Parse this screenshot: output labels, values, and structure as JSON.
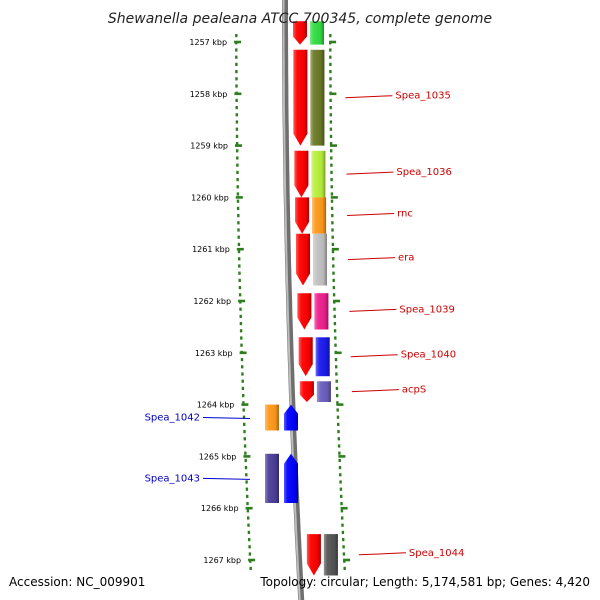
{
  "header": {
    "title": "Shewanella pealeana ATCC 700345, complete genome"
  },
  "footer": {
    "accession": "Accession: NC_009901",
    "topology": "Topology: circular; Length: 5,174,581 bp; Genes: 4,420"
  },
  "scale": {
    "unit": "kbp",
    "ticks": [
      {
        "value": 1257,
        "label": "1257 kbp"
      },
      {
        "value": 1258,
        "label": "1258 kbp"
      },
      {
        "value": 1259,
        "label": "1259 kbp"
      },
      {
        "value": 1260,
        "label": "1260 kbp"
      },
      {
        "value": 1261,
        "label": "1261 kbp"
      },
      {
        "value": 1262,
        "label": "1262 kbp"
      },
      {
        "value": 1263,
        "label": "1263 kbp"
      },
      {
        "value": 1264,
        "label": "1264 kbp"
      },
      {
        "value": 1265,
        "label": "1265 kbp"
      },
      {
        "value": 1266,
        "label": "1266 kbp"
      },
      {
        "value": 1267,
        "label": "1267 kbp"
      }
    ]
  },
  "genes": [
    {
      "label": "",
      "strand": "+",
      "start": 1256.6,
      "end": 1257.05,
      "color": "#33dd44"
    },
    {
      "label": "Spea_1035",
      "strand": "+",
      "start": 1257.15,
      "end": 1259.0,
      "color": "#6b7a26"
    },
    {
      "label": "Spea_1036",
      "strand": "+",
      "start": 1259.1,
      "end": 1260.0,
      "color": "#b8f03c"
    },
    {
      "label": "rnc",
      "strand": "+",
      "start": 1260.0,
      "end": 1260.7,
      "color": "#ff9a1a"
    },
    {
      "label": "era",
      "strand": "+",
      "start": 1260.7,
      "end": 1261.7,
      "color": "#c2c2c2"
    },
    {
      "label": "Spea_1039",
      "strand": "+",
      "start": 1261.85,
      "end": 1262.55,
      "color": "#ee1f8e"
    },
    {
      "label": "Spea_1040",
      "strand": "+",
      "start": 1262.7,
      "end": 1263.45,
      "color": "#1a1aee"
    },
    {
      "label": "acpS",
      "strand": "+",
      "start": 1263.55,
      "end": 1263.95,
      "color": "#6a5fbe"
    },
    {
      "label": "Spea_1042",
      "strand": "-",
      "start": 1264.0,
      "end": 1264.5,
      "color": "#ff9a1a"
    },
    {
      "label": "Spea_1043",
      "strand": "-",
      "start": 1264.95,
      "end": 1265.9,
      "color": "#4b3f9a"
    },
    {
      "label": "Spea_1044",
      "strand": "+",
      "start": 1266.5,
      "end": 1267.3,
      "color": "#555555"
    }
  ],
  "colors": {
    "forward_label": "#cc0000",
    "reverse_label": "#0000cc",
    "strand_arrow_forward": "#ff0000",
    "strand_arrow_reverse": "#0000ff",
    "scale_dots": "#2e7d1e",
    "backbone": "#8a8a8a"
  }
}
